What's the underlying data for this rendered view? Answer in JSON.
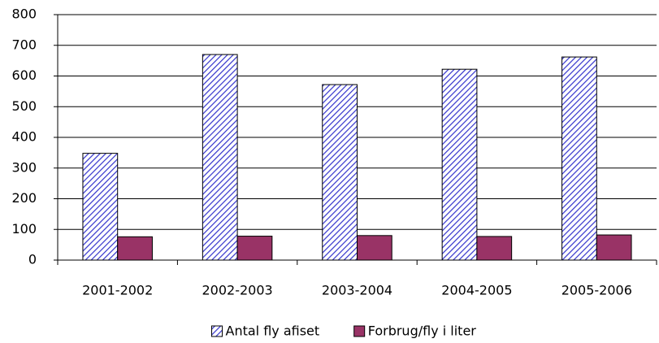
{
  "chart_data": {
    "type": "bar",
    "categories": [
      "2001-2002",
      "2002-2003",
      "2003-2004",
      "2004-2005",
      "2005-2006"
    ],
    "series": [
      {
        "name": "Antal fly afiset",
        "color": "#3333cc",
        "pattern": "hatch",
        "values": [
          348,
          670,
          572,
          622,
          662
        ]
      },
      {
        "name": "Forbrug/fly i liter",
        "color": "#993366",
        "values": [
          76,
          78,
          80,
          77,
          82
        ]
      }
    ],
    "ylim": [
      0,
      800
    ],
    "yticks": [
      0,
      100,
      200,
      300,
      400,
      500,
      600,
      700,
      800
    ],
    "grid": true,
    "legend": "bottom"
  }
}
